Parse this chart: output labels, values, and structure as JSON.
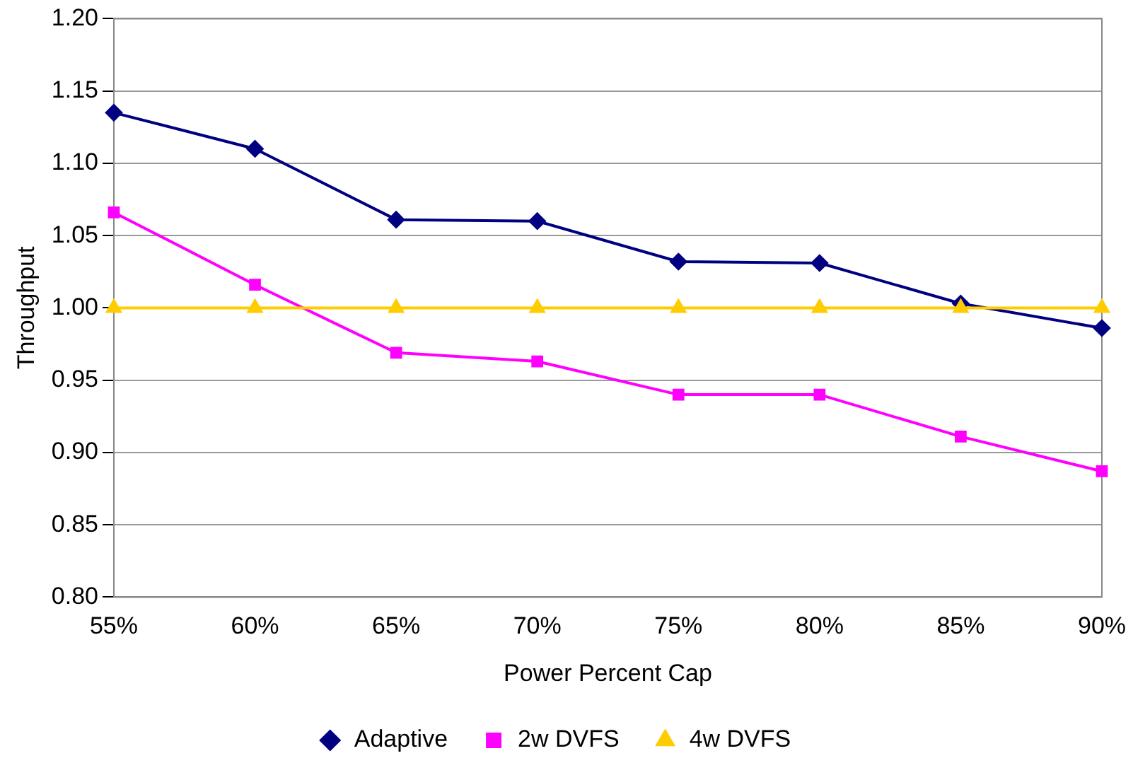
{
  "chart_data": {
    "type": "line",
    "xlabel": "Power Percent Cap",
    "ylabel": "Throughput",
    "categories": [
      "55%",
      "60%",
      "65%",
      "70%",
      "75%",
      "80%",
      "85%",
      "90%"
    ],
    "series": [
      {
        "name": "Adaptive",
        "color": "#000080",
        "marker": "diamond",
        "values": [
          1.135,
          1.11,
          1.061,
          1.06,
          1.032,
          1.031,
          1.003,
          0.986
        ]
      },
      {
        "name": "2w DVFS",
        "color": "#ff00ff",
        "marker": "square",
        "values": [
          1.066,
          1.016,
          0.969,
          0.963,
          0.94,
          0.94,
          0.911,
          0.887
        ]
      },
      {
        "name": "4w DVFS",
        "color": "#ffcc00",
        "marker": "triangle",
        "values": [
          1.0,
          1.0,
          1.0,
          1.0,
          1.0,
          1.0,
          1.0,
          1.0
        ]
      }
    ],
    "ylim": [
      0.8,
      1.2
    ],
    "yticks": [
      {
        "value": 0.8,
        "label": "0.80"
      },
      {
        "value": 0.85,
        "label": "0.85"
      },
      {
        "value": 0.9,
        "label": "0.90"
      },
      {
        "value": 0.95,
        "label": "0.95"
      },
      {
        "value": 1.0,
        "label": "1.00"
      },
      {
        "value": 1.05,
        "label": "1.05"
      },
      {
        "value": 1.1,
        "label": "1.10"
      },
      {
        "value": 1.15,
        "label": "1.15"
      },
      {
        "value": 1.2,
        "label": "1.20"
      }
    ],
    "grid": "y",
    "legend": "bottom",
    "line_style": "solid"
  }
}
